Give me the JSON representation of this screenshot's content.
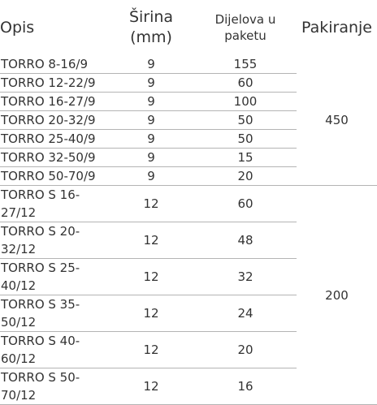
{
  "headers": {
    "opis": "Opis",
    "sirina_line1": "Širina",
    "sirina_line2": "(mm)",
    "dijelova_line1": "Dijelova u",
    "dijelova_line2": "paketu",
    "pakiranje": "Pakiranje"
  },
  "rows": [
    {
      "opis": "TORRO 8-16/9",
      "sirina": "9",
      "dijelova": "155"
    },
    {
      "opis": "TORRO 12-22/9",
      "sirina": "9",
      "dijelova": "60"
    },
    {
      "opis": "TORRO 16-27/9",
      "sirina": "9",
      "dijelova": "100"
    },
    {
      "opis": "TORRO 20-32/9",
      "sirina": "9",
      "dijelova": "50"
    },
    {
      "opis": "TORRO 25-40/9",
      "sirina": "9",
      "dijelova": "50"
    },
    {
      "opis": "TORRO 32-50/9",
      "sirina": "9",
      "dijelova": "15"
    },
    {
      "opis": "TORRO 50-70/9",
      "sirina": "9",
      "dijelova": "20"
    },
    {
      "opis_line1": "TORRO S 16-",
      "opis_line2": "27/12",
      "sirina": "12",
      "dijelova": "60"
    },
    {
      "opis_line1": "TORRO S 20-",
      "opis_line2": "32/12",
      "sirina": "12",
      "dijelova": "48"
    },
    {
      "opis_line1": "TORRO S 25-",
      "opis_line2": "40/12",
      "sirina": "12",
      "dijelova": "32"
    },
    {
      "opis_line1": "TORRO S 35-",
      "opis_line2": "50/12",
      "sirina": "12",
      "dijelova": "24"
    },
    {
      "opis_line1": "TORRO S 40-",
      "opis_line2": "60/12",
      "sirina": "12",
      "dijelova": "20"
    },
    {
      "opis_line1": "TORRO S 50-",
      "opis_line2": "70/12",
      "sirina": "12",
      "dijelova": "16"
    }
  ],
  "pakiranje_groups": [
    "450",
    "200"
  ]
}
